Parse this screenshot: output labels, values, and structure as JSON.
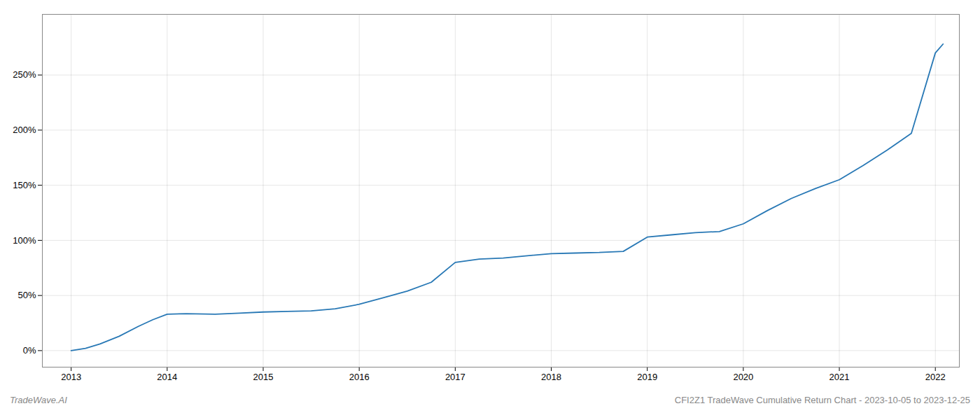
{
  "chart_data": {
    "type": "line",
    "title": "CFI2Z1 TradeWave Cumulative Return Chart - 2023-10-05 to 2023-12-25",
    "annotations": [
      "TradeWave.AI"
    ],
    "color": "#2878b5",
    "x": [
      2013.0,
      2013.15,
      2013.3,
      2013.5,
      2013.7,
      2013.85,
      2014.0,
      2014.2,
      2014.5,
      2014.75,
      2015.0,
      2015.25,
      2015.5,
      2015.75,
      2016.0,
      2016.25,
      2016.5,
      2016.75,
      2017.0,
      2017.25,
      2017.5,
      2017.75,
      2018.0,
      2018.25,
      2018.5,
      2018.75,
      2019.0,
      2019.25,
      2019.5,
      2019.75,
      2020.0,
      2020.25,
      2020.5,
      2020.75,
      2021.0,
      2021.25,
      2021.5,
      2021.75,
      2022.0,
      2022.08
    ],
    "values": [
      0,
      2,
      6,
      13,
      22,
      28,
      33,
      33.5,
      33,
      34,
      35,
      35.5,
      36,
      38,
      42,
      48,
      54,
      62,
      80,
      83,
      84,
      86,
      88,
      88.5,
      89,
      90,
      103,
      105,
      107,
      108,
      115,
      127,
      138,
      147,
      155,
      168,
      182,
      197,
      270,
      278
    ],
    "xlim": [
      2012.7,
      2022.25
    ],
    "xticks": [
      2013,
      2014,
      2015,
      2016,
      2017,
      2018,
      2019,
      2020,
      2021,
      2022
    ],
    "ylim": [
      -15,
      305
    ],
    "yticks": [
      {
        "value": 0,
        "label": "0%"
      },
      {
        "value": 50,
        "label": "50%"
      },
      {
        "value": 100,
        "label": "100%"
      },
      {
        "value": 150,
        "label": "150%"
      },
      {
        "value": 200,
        "label": "200%"
      },
      {
        "value": 250,
        "label": "250%"
      }
    ],
    "grid": true
  }
}
